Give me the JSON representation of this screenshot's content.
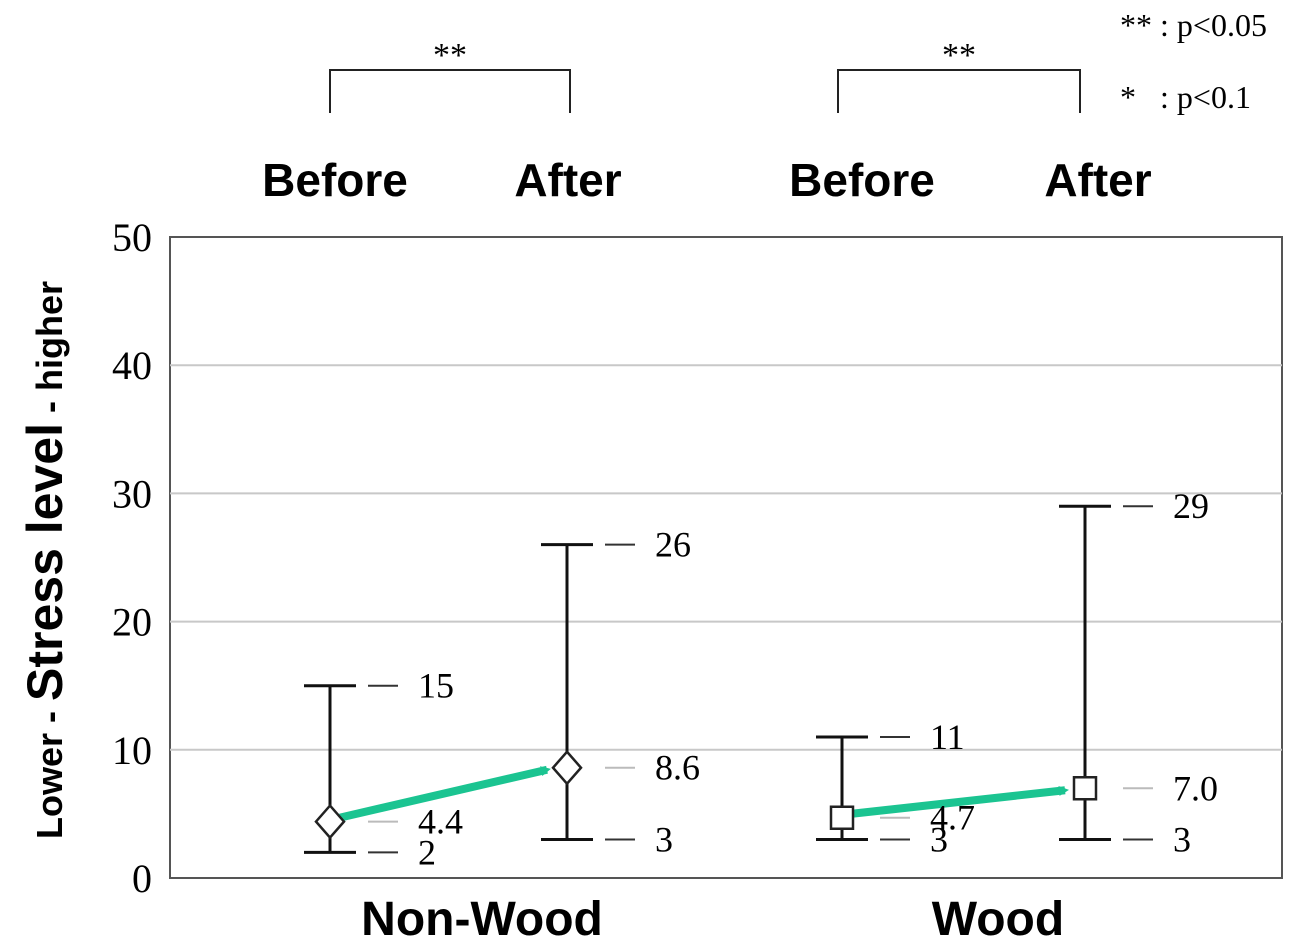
{
  "chart_data": {
    "type": "box",
    "ylabel": {
      "part1": "Lower - ",
      "part2": "Stress level",
      "part3": " - higher"
    },
    "ylim": [
      0,
      50
    ],
    "yticks": [
      "0",
      "10",
      "20",
      "30",
      "40",
      "50"
    ],
    "grid": true,
    "groups": [
      "Non-Wood",
      "Wood"
    ],
    "conditions": [
      "Before",
      "After"
    ],
    "significance_legend": [
      "** : p<0.05",
      "*   : p<0.1"
    ],
    "brackets": [
      "**",
      "**"
    ],
    "points": [
      {
        "group": "Non-Wood",
        "condition": "Before",
        "marker": "diamond",
        "min": 2,
        "mean": 4.4,
        "max": 15,
        "min_label": "2",
        "mean_label": "4.4",
        "max_label": "15"
      },
      {
        "group": "Non-Wood",
        "condition": "After",
        "marker": "diamond",
        "min": 3,
        "mean": 8.6,
        "max": 26,
        "min_label": "3",
        "mean_label": "8.6",
        "max_label": "26"
      },
      {
        "group": "Wood",
        "condition": "Before",
        "marker": "square",
        "min": 3,
        "mean": 4.7,
        "max": 11,
        "min_label": "3",
        "mean_label": "4.7",
        "max_label": "11"
      },
      {
        "group": "Wood",
        "condition": "After",
        "marker": "square",
        "min": 3,
        "mean": 7.0,
        "max": 29,
        "min_label": "3",
        "mean_label": "7.0",
        "max_label": "29"
      }
    ],
    "arrow_color": "#1bc491",
    "grid_color": "#c8c8c8"
  }
}
